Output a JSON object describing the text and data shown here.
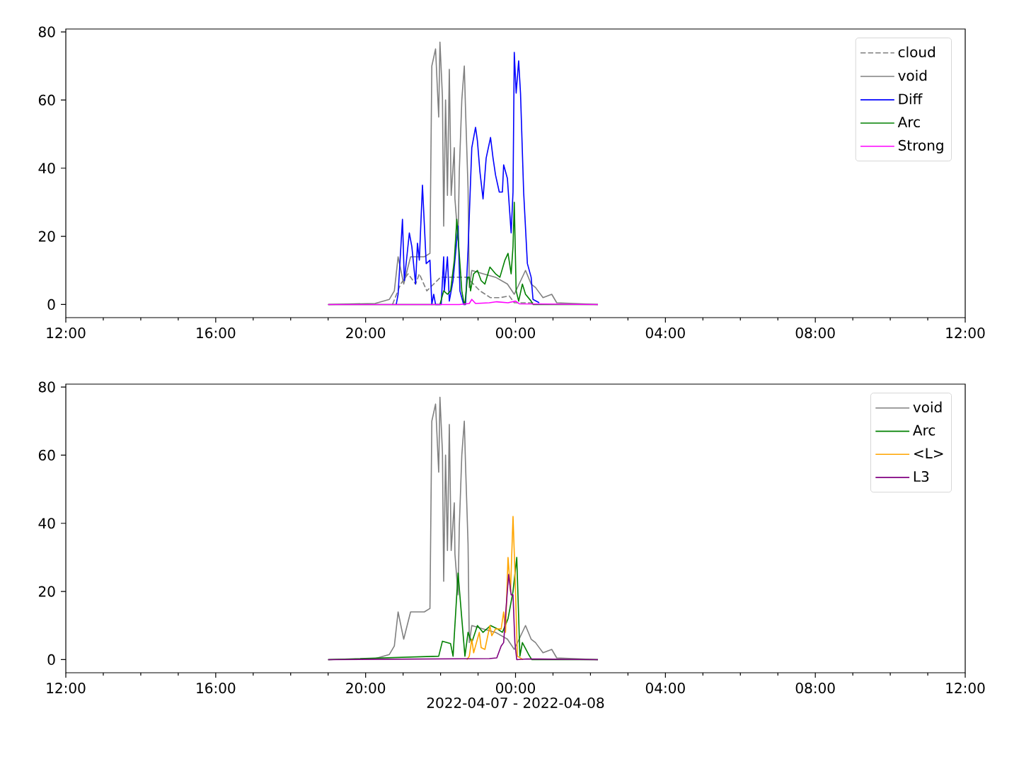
{
  "chart_data": [
    {
      "type": "line",
      "xlim": [
        "2022-04-07T12:00",
        "2022-04-08T12:00"
      ],
      "ylim": [
        -3.85,
        80.85
      ],
      "legend": "top right",
      "marker": "none",
      "xticks": [
        {
          "value": "2022-04-07T12:00",
          "label": "12:00"
        },
        {
          "value": "2022-04-07T16:00",
          "label": "16:00"
        },
        {
          "value": "2022-04-07T20:00",
          "label": "20:00"
        },
        {
          "value": "2022-04-08T00:00",
          "label": "00:00"
        },
        {
          "value": "2022-04-08T04:00",
          "label": "04:00"
        },
        {
          "value": "2022-04-08T08:00",
          "label": "08:00"
        },
        {
          "value": "2022-04-08T12:00",
          "label": "12:00"
        }
      ],
      "yticks": [
        0,
        20,
        40,
        60,
        80
      ],
      "series": [
        {
          "name": "cloud",
          "color": "#808080",
          "line_style": "dashed",
          "x": [
            "2022-04-07T20:43",
            "2022-04-07T20:56",
            "2022-04-07T21:08",
            "2022-04-07T21:20",
            "2022-04-07T21:26",
            "2022-04-07T21:38",
            "2022-04-07T22:00",
            "2022-04-07T22:42",
            "2022-04-07T23:03",
            "2022-04-07T23:20",
            "2022-04-07T23:35",
            "2022-04-07T23:50",
            "2022-04-07T23:58",
            "2022-04-08T00:30"
          ],
          "values": [
            0,
            6,
            9,
            6,
            9,
            4,
            8,
            8,
            4,
            2,
            2,
            2.5,
            0.5,
            0.5
          ]
        },
        {
          "name": "void",
          "color": "#808080",
          "x": [
            "2022-04-07T19:00",
            "2022-04-07T20:15",
            "2022-04-07T20:38",
            "2022-04-07T20:46",
            "2022-04-07T20:52",
            "2022-04-07T21:01",
            "2022-04-07T21:12",
            "2022-04-07T21:23",
            "2022-04-07T21:34",
            "2022-04-07T21:43",
            "2022-04-07T21:46",
            "2022-04-07T21:52",
            "2022-04-07T21:57",
            "2022-04-07T21:59",
            "2022-04-07T22:03",
            "2022-04-07T22:05",
            "2022-04-07T22:08",
            "2022-04-07T22:11",
            "2022-04-07T22:14",
            "2022-04-07T22:17",
            "2022-04-07T22:22",
            "2022-04-07T22:23",
            "2022-04-07T22:28",
            "2022-04-07T22:30",
            "2022-04-07T22:34",
            "2022-04-07T22:38",
            "2022-04-07T22:40",
            "2022-04-07T22:44",
            "2022-04-07T22:46",
            "2022-04-07T22:50",
            "2022-04-07T23:08",
            "2022-04-07T23:28",
            "2022-04-07T23:47",
            "2022-04-07T23:58",
            "2022-04-08T00:16",
            "2022-04-08T00:25",
            "2022-04-08T00:32",
            "2022-04-08T00:44",
            "2022-04-08T00:58",
            "2022-04-08T01:06",
            "2022-04-08T02:12"
          ],
          "values": [
            0,
            0.3,
            1.5,
            4,
            14,
            6,
            14,
            14,
            14,
            15,
            70,
            75,
            55,
            77,
            61,
            23,
            60,
            32,
            69,
            32,
            46,
            31,
            19,
            39,
            60,
            70,
            57,
            34,
            5,
            10,
            9,
            8,
            6,
            3,
            10,
            6,
            5,
            2,
            3,
            0.5,
            0
          ]
        },
        {
          "name": "Diff",
          "color": "#0000ff",
          "x": [
            "2022-04-07T20:49",
            "2022-04-07T20:52",
            "2022-04-07T20:59",
            "2022-04-07T21:02",
            "2022-04-07T21:10",
            "2022-04-07T21:14",
            "2022-04-07T21:20",
            "2022-04-07T21:23",
            "2022-04-07T21:26",
            "2022-04-07T21:31",
            "2022-04-07T21:37",
            "2022-04-07T21:43",
            "2022-04-07T21:46",
            "2022-04-07T21:49",
            "2022-04-07T21:52",
            "2022-04-07T22:01",
            "2022-04-07T22:05",
            "2022-04-07T22:06",
            "2022-04-07T22:11",
            "2022-04-07T22:14",
            "2022-04-07T22:20",
            "2022-04-07T22:28",
            "2022-04-07T22:31",
            "2022-04-07T22:37",
            "2022-04-07T22:40",
            "2022-04-07T22:44",
            "2022-04-07T22:50",
            "2022-04-07T22:56",
            "2022-04-07T22:59",
            "2022-04-07T23:03",
            "2022-04-07T23:08",
            "2022-04-07T23:13",
            "2022-04-07T23:20",
            "2022-04-07T23:24",
            "2022-04-07T23:28",
            "2022-04-07T23:34",
            "2022-04-07T23:39",
            "2022-04-07T23:41",
            "2022-04-07T23:47",
            "2022-04-07T23:53",
            "2022-04-07T23:56",
            "2022-04-07T23:58",
            "2022-04-08T00:01",
            "2022-04-08T00:05",
            "2022-04-08T00:08",
            "2022-04-08T00:13",
            "2022-04-08T00:19",
            "2022-04-08T00:25",
            "2022-04-08T00:28",
            "2022-04-08T00:38"
          ],
          "values": [
            0,
            3,
            25,
            7,
            21,
            17,
            6,
            18,
            13,
            35,
            12,
            13,
            0,
            3,
            0,
            0,
            14,
            4,
            14,
            1,
            7,
            23,
            4,
            0,
            0,
            16,
            46,
            52,
            48,
            39,
            31,
            43,
            49,
            43,
            38,
            33,
            33,
            41,
            37,
            21,
            33,
            74,
            62,
            71.5,
            62,
            33,
            12,
            8,
            1.5,
            0.5
          ]
        },
        {
          "name": "Arc",
          "color": "#008000",
          "x": [
            "2022-04-07T19:00",
            "2022-04-07T21:59",
            "2022-04-07T22:05",
            "2022-04-07T22:11",
            "2022-04-07T22:16",
            "2022-04-07T22:22",
            "2022-04-07T22:26",
            "2022-04-07T22:31",
            "2022-04-07T22:34",
            "2022-04-07T22:37",
            "2022-04-07T22:39",
            "2022-04-07T22:43",
            "2022-04-07T22:46",
            "2022-04-07T22:48",
            "2022-04-07T22:53",
            "2022-04-07T22:59",
            "2022-04-07T23:05",
            "2022-04-07T23:11",
            "2022-04-07T23:19",
            "2022-04-07T23:28",
            "2022-04-07T23:35",
            "2022-04-07T23:43",
            "2022-04-07T23:48",
            "2022-04-07T23:53",
            "2022-04-07T23:56",
            "2022-04-07T23:58",
            "2022-04-08T00:01",
            "2022-04-08T00:05",
            "2022-04-08T00:11",
            "2022-04-08T00:16",
            "2022-04-08T00:25",
            "2022-04-08T00:28",
            "2022-04-08T02:12"
          ],
          "values": [
            0,
            0,
            4,
            3,
            4,
            13,
            25,
            12,
            4,
            1,
            0,
            8,
            8,
            4,
            9,
            10,
            7,
            6,
            11,
            9,
            8,
            13,
            15,
            9,
            17,
            30,
            4,
            1,
            6,
            3,
            1,
            0,
            0
          ]
        },
        {
          "name": "Strong",
          "color": "#ff00ff",
          "x": [
            "2022-04-07T19:00",
            "2022-04-07T22:30",
            "2022-04-07T22:46",
            "2022-04-07T22:50",
            "2022-04-07T22:56",
            "2022-04-07T23:18",
            "2022-04-07T23:30",
            "2022-04-07T23:48",
            "2022-04-08T00:00",
            "2022-04-08T00:06",
            "2022-04-08T02:12"
          ],
          "values": [
            0,
            0,
            0.3,
            1.5,
            0.3,
            0.5,
            0.8,
            0.5,
            1.0,
            0.2,
            0
          ]
        }
      ]
    },
    {
      "type": "line",
      "xlim": [
        "2022-04-07T12:00",
        "2022-04-08T12:00"
      ],
      "ylim": [
        -3.85,
        80.85
      ],
      "legend": "top right",
      "marker": "none",
      "xlabel": "2022-04-07 - 2022-04-08",
      "xticks": [
        {
          "value": "2022-04-07T12:00",
          "label": "12:00"
        },
        {
          "value": "2022-04-07T16:00",
          "label": "16:00"
        },
        {
          "value": "2022-04-07T20:00",
          "label": "20:00"
        },
        {
          "value": "2022-04-08T00:00",
          "label": "00:00"
        },
        {
          "value": "2022-04-08T04:00",
          "label": "04:00"
        },
        {
          "value": "2022-04-08T08:00",
          "label": "08:00"
        },
        {
          "value": "2022-04-08T12:00",
          "label": "12:00"
        }
      ],
      "yticks": [
        0,
        20,
        40,
        60,
        80
      ],
      "series": [
        {
          "name": "void",
          "color": "#808080",
          "x": [
            "2022-04-07T19:00",
            "2022-04-07T20:15",
            "2022-04-07T20:38",
            "2022-04-07T20:46",
            "2022-04-07T20:52",
            "2022-04-07T21:01",
            "2022-04-07T21:12",
            "2022-04-07T21:23",
            "2022-04-07T21:34",
            "2022-04-07T21:43",
            "2022-04-07T21:46",
            "2022-04-07T21:52",
            "2022-04-07T21:57",
            "2022-04-07T21:59",
            "2022-04-07T22:03",
            "2022-04-07T22:05",
            "2022-04-07T22:08",
            "2022-04-07T22:11",
            "2022-04-07T22:14",
            "2022-04-07T22:17",
            "2022-04-07T22:22",
            "2022-04-07T22:23",
            "2022-04-07T22:28",
            "2022-04-07T22:30",
            "2022-04-07T22:34",
            "2022-04-07T22:38",
            "2022-04-07T22:40",
            "2022-04-07T22:44",
            "2022-04-07T22:46",
            "2022-04-07T22:50",
            "2022-04-07T23:08",
            "2022-04-07T23:28",
            "2022-04-07T23:47",
            "2022-04-07T23:58",
            "2022-04-08T00:16",
            "2022-04-08T00:25",
            "2022-04-08T00:32",
            "2022-04-08T00:44",
            "2022-04-08T00:58",
            "2022-04-08T01:06",
            "2022-04-08T02:12"
          ],
          "values": [
            0,
            0.3,
            1.5,
            4,
            14,
            6,
            14,
            14,
            14,
            15,
            70,
            75,
            55,
            77,
            61,
            23,
            60,
            32,
            69,
            32,
            46,
            31,
            19,
            39,
            60,
            70,
            57,
            34,
            5,
            10,
            9,
            8,
            6,
            3,
            10,
            6,
            5,
            2,
            3,
            0.5,
            0
          ]
        },
        {
          "name": "Arc",
          "color": "#008000",
          "x": [
            "2022-04-07T19:00",
            "2022-04-07T21:57",
            "2022-04-07T22:03",
            "2022-04-07T22:16",
            "2022-04-07T22:20",
            "2022-04-07T22:28",
            "2022-04-07T22:34",
            "2022-04-07T22:39",
            "2022-04-07T22:44",
            "2022-04-07T22:50",
            "2022-04-07T22:59",
            "2022-04-07T23:08",
            "2022-04-07T23:20",
            "2022-04-07T23:31",
            "2022-04-07T23:39",
            "2022-04-07T23:48",
            "2022-04-07T23:56",
            "2022-04-08T00:02",
            "2022-04-08T00:07",
            "2022-04-08T00:11",
            "2022-04-08T00:21",
            "2022-04-08T00:26",
            "2022-04-08T02:12"
          ],
          "values": [
            0,
            1,
            5.4,
            4.7,
            1,
            25.4,
            12,
            1,
            8,
            5,
            10,
            8,
            10,
            9,
            8,
            12,
            20,
            30,
            1,
            5,
            1.5,
            0,
            0
          ]
        },
        {
          "name": "<L>",
          "color": "#ffa500",
          "x": [
            "2022-04-07T22:42",
            "2022-04-07T22:46",
            "2022-04-07T22:50",
            "2022-04-07T22:53",
            "2022-04-07T23:02",
            "2022-04-07T23:05",
            "2022-04-07T23:11",
            "2022-04-07T23:19",
            "2022-04-07T23:22",
            "2022-04-07T23:28",
            "2022-04-07T23:37",
            "2022-04-07T23:41",
            "2022-04-07T23:44",
            "2022-04-07T23:48",
            "2022-04-07T23:52",
            "2022-04-07T23:56",
            "2022-04-07T23:59",
            "2022-04-08T00:03",
            "2022-04-08T00:12"
          ],
          "values": [
            0,
            1,
            6,
            2,
            8,
            3.5,
            3,
            10,
            7,
            9,
            9,
            14,
            8,
            30,
            20,
            42,
            26,
            1,
            0
          ]
        },
        {
          "name": "L3",
          "color": "#800080",
          "x": [
            "2022-04-07T19:00",
            "2022-04-07T23:18",
            "2022-04-07T23:30",
            "2022-04-07T23:37",
            "2022-04-07T23:41",
            "2022-04-07T23:44",
            "2022-04-07T23:49",
            "2022-04-07T23:53",
            "2022-04-07T23:56",
            "2022-04-07T23:59",
            "2022-04-08T00:02",
            "2022-04-08T00:18",
            "2022-04-08T02:12"
          ],
          "values": [
            0,
            0.3,
            0.5,
            4,
            5,
            13,
            25,
            19,
            19,
            5,
            0,
            0.2,
            0
          ]
        }
      ]
    }
  ]
}
